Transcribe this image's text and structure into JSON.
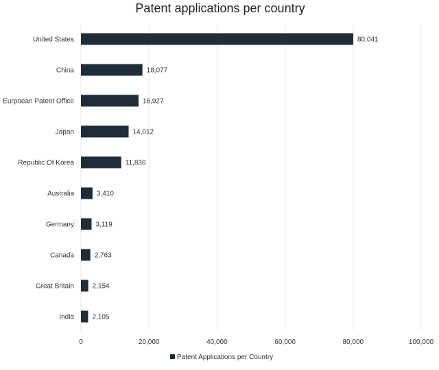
{
  "chart_data": {
    "type": "bar",
    "orientation": "horizontal",
    "title": "Patent applications per country",
    "categories": [
      "United States",
      "China",
      "Eurpoean Patent Office",
      "Japan",
      "Republic Of Korea",
      "Australia",
      "Germany",
      "Canada",
      "Great Britain",
      "India"
    ],
    "series": [
      {
        "name": "Patent Applications per Country",
        "values": [
          80041,
          18077,
          16927,
          14012,
          11836,
          3410,
          3119,
          2763,
          2154,
          2105
        ],
        "value_labels": [
          "80,041",
          "18,077",
          "16,927",
          "14,012",
          "11,836",
          "3,410",
          "3,119",
          "2,763",
          "2,154",
          "2,105"
        ],
        "color": "#1f2d38"
      }
    ],
    "xlim": [
      0,
      100000
    ],
    "x_ticks": [
      0,
      20000,
      40000,
      60000,
      80000,
      100000
    ],
    "x_tick_labels": [
      "0",
      "20,000",
      "40,000",
      "60,000",
      "80,000",
      "100,000"
    ],
    "xlabel": "",
    "ylabel": "",
    "grid": "vertical",
    "gridline_color": "#e6e6e6",
    "legend_position": "bottom"
  }
}
